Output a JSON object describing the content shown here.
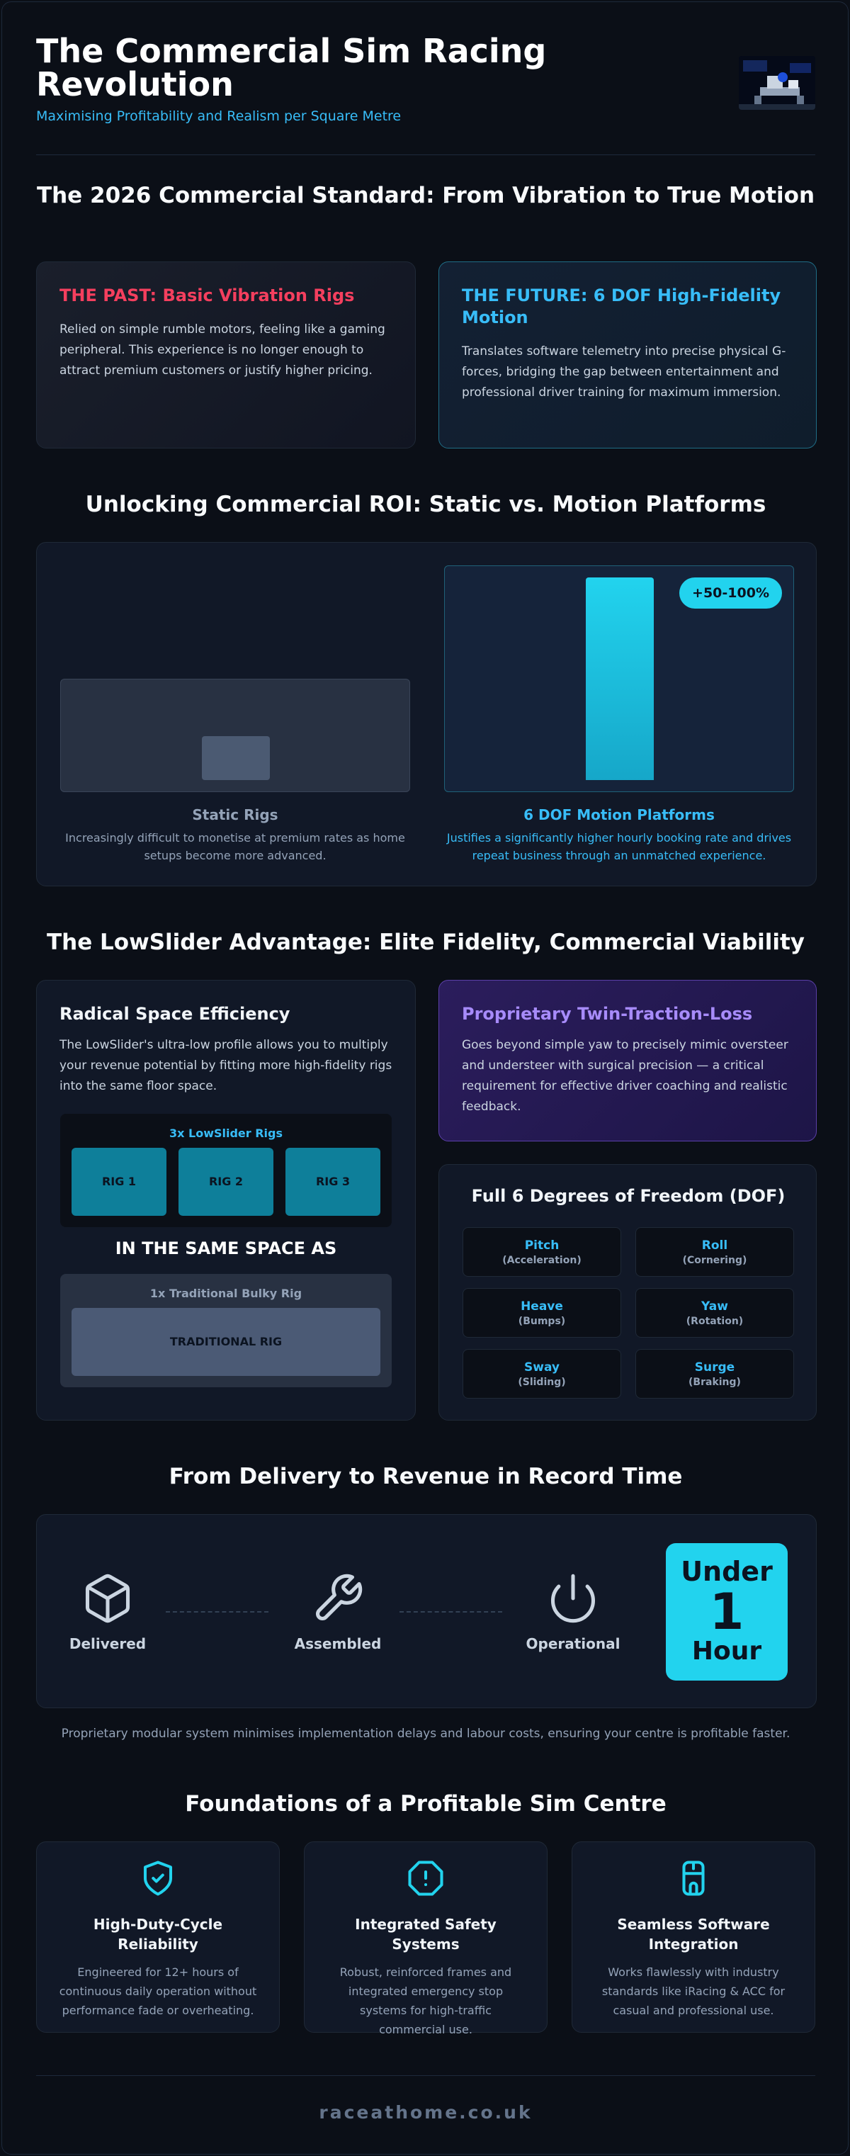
{
  "header": {
    "title": "The Commercial Sim Racing Revolution",
    "subtitle": "Maximising Profitability and Realism per Square Metre"
  },
  "standard": {
    "title": "The 2026 Commercial Standard: From Vibration to True Motion",
    "past": {
      "title": "THE PAST: Basic Vibration Rigs",
      "text": "Relied on simple rumble motors, feeling like a gaming peripheral. This experience is no longer enough to attract premium customers or justify higher pricing."
    },
    "future": {
      "title": "THE FUTURE: 6 DOF High-Fidelity Motion",
      "text": "Translates software telemetry into precise physical G-forces, bridging the gap between entertainment and professional driver training for maximum immersion."
    }
  },
  "roi": {
    "title": "Unlocking Commercial ROI: Static vs. Motion Platforms",
    "static": {
      "label": "Static Rigs",
      "text": "Increasingly difficult to monetise at premium rates as home setups become more advanced."
    },
    "motion": {
      "label": "6 DOF Motion Platforms",
      "text": "Justifies a significantly higher hourly booking rate and drives repeat business through an unmatched experience.",
      "badge": "+50-100%"
    }
  },
  "lowslider": {
    "title": "The LowSlider Advantage: Elite Fidelity, Commercial Viability",
    "space": {
      "title": "Radical Space Efficiency",
      "text": "The LowSlider's ultra-low profile allows you to multiply your revenue potential by fitting more high-fidelity rigs into the same floor space.",
      "rigs_label": "3x LowSlider Rigs",
      "rigs": [
        "RIG 1",
        "RIG 2",
        "RIG 3"
      ],
      "same_space": "IN THE SAME SPACE AS",
      "traditional_label": "1x Traditional Bulky Rig",
      "traditional_rig": "TRADITIONAL RIG"
    },
    "traction": {
      "title": "Proprietary Twin-Traction-Loss",
      "text": "Goes beyond simple yaw to precisely mimic oversteer and understeer with surgical precision — a critical requirement for effective driver coaching and realistic feedback."
    },
    "dof": {
      "title": "Full 6 Degrees of Freedom (DOF)",
      "items": [
        {
          "name": "Pitch",
          "desc": "(Acceleration)"
        },
        {
          "name": "Roll",
          "desc": "(Cornering)"
        },
        {
          "name": "Heave",
          "desc": "(Bumps)"
        },
        {
          "name": "Yaw",
          "desc": "(Rotation)"
        },
        {
          "name": "Sway",
          "desc": "(Sliding)"
        },
        {
          "name": "Surge",
          "desc": "(Braking)"
        }
      ]
    }
  },
  "delivery": {
    "title": "From Delivery to Revenue in Record Time",
    "steps": [
      {
        "label": "Delivered",
        "icon": "box-icon"
      },
      {
        "label": "Assembled",
        "icon": "wrench-icon"
      },
      {
        "label": "Operational",
        "icon": "power-icon"
      }
    ],
    "badge_top": "Under",
    "badge_num": "1",
    "badge_bottom": "Hour",
    "note": "Proprietary modular system minimises implementation delays and labour costs, ensuring your centre is profitable faster."
  },
  "foundations": {
    "title": "Foundations of a Profitable Sim Centre",
    "cards": [
      {
        "title": "High-Duty-Cycle Reliability",
        "text": "Engineered for 12+ hours of continuous daily operation without performance fade or overheating.",
        "icon": "shield-check-icon"
      },
      {
        "title": "Integrated Safety Systems",
        "text": "Robust, reinforced frames and integrated emergency stop systems for high-traffic commercial use.",
        "icon": "alert-octagon-icon"
      },
      {
        "title": "Seamless Software Integration",
        "text": "Works flawlessly with industry standards like iRacing & ACC for casual and professional use.",
        "icon": "plug-icon"
      }
    ]
  },
  "footer": {
    "site": "raceathome.co.uk"
  },
  "colors": {
    "background": "#0b0f17",
    "card": "#111827",
    "accent_cyan": "#22d3ee",
    "accent_blue": "#38bdf8",
    "past_red": "#f43f5e",
    "purple": "#a78bfa",
    "rig_teal": "#0e7f9a",
    "traditional_grey": "#4b5a75"
  }
}
